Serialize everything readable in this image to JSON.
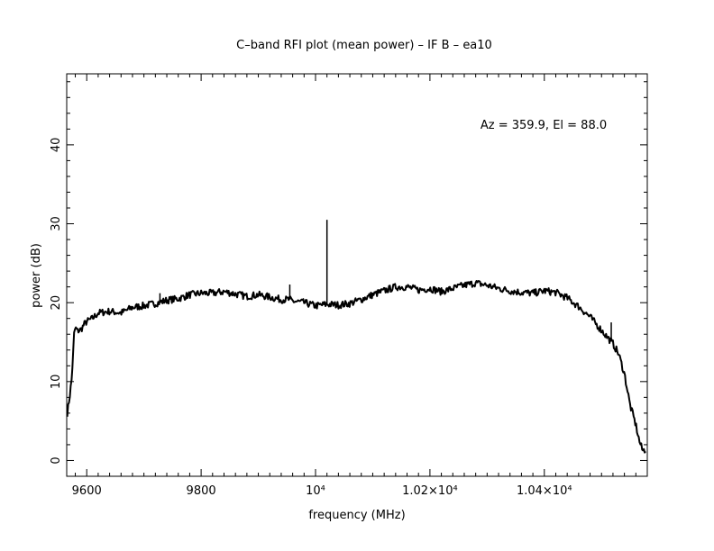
{
  "chart_data": {
    "type": "line",
    "title": "C–band RFI plot (mean power) – IF B – ea10",
    "xlabel": "frequency (MHz)",
    "ylabel": "power (dB)",
    "annotation": "Az = 359.9, El = 88.0",
    "xlim": [
      9565,
      10580
    ],
    "ylim": [
      -2,
      49
    ],
    "grid": false,
    "legend": "none",
    "line_color": "#000000",
    "x_ticks": [
      {
        "value": 9600,
        "label": "9600"
      },
      {
        "value": 9800,
        "label": "9800"
      },
      {
        "value": 10000,
        "label": "10⁴"
      },
      {
        "value": 10200,
        "label": "1.02×10⁴"
      },
      {
        "value": 10400,
        "label": "1.04×10⁴"
      }
    ],
    "y_ticks": [
      {
        "value": 0,
        "label": "0"
      },
      {
        "value": 10,
        "label": "10"
      },
      {
        "value": 20,
        "label": "20"
      },
      {
        "value": 30,
        "label": "30"
      },
      {
        "value": 40,
        "label": "40"
      }
    ],
    "series": [
      {
        "x": [
          9566,
          9570,
          9574,
          9578,
          9580,
          9584,
          9590,
          9596,
          9600,
          9610,
          9620,
          9640,
          9660,
          9680,
          9700,
          9720,
          9730,
          9740,
          9760,
          9780,
          9800,
          9820,
          9840,
          9860,
          9880,
          9900,
          9920,
          9940,
          9955,
          9960,
          9980,
          10000,
          10020,
          10040,
          10050,
          10060,
          10080,
          10100,
          10120,
          10140,
          10160,
          10180,
          10200,
          10220,
          10240,
          10260,
          10280,
          10300,
          10320,
          10340,
          10360,
          10380,
          10400,
          10420,
          10440,
          10460,
          10480,
          10500,
          10520,
          10530,
          10540,
          10550,
          10560,
          10566,
          10572,
          10578
        ],
        "y": [
          6.0,
          8.0,
          10.5,
          16.0,
          16.8,
          16.4,
          16.6,
          17.3,
          17.6,
          18.0,
          18.7,
          18.9,
          18.7,
          19.4,
          19.6,
          19.9,
          20.1,
          20.3,
          20.5,
          21.0,
          21.2,
          21.2,
          21.4,
          21.1,
          20.8,
          21.0,
          20.7,
          20.4,
          20.4,
          20.2,
          20.0,
          19.6,
          19.8,
          19.7,
          19.8,
          19.9,
          20.4,
          21.0,
          21.5,
          22.0,
          22.0,
          21.6,
          21.8,
          21.4,
          21.8,
          22.2,
          22.5,
          22.2,
          21.8,
          21.5,
          21.3,
          21.2,
          21.5,
          21.3,
          20.6,
          19.5,
          18.2,
          16.5,
          14.8,
          13.5,
          11.0,
          7.0,
          4.5,
          2.5,
          1.2,
          1.5
        ],
        "spikes": [
          {
            "x": 9728,
            "y": 21.2
          },
          {
            "x": 9955,
            "y": 22.3
          },
          {
            "x": 10020,
            "y": 30.5
          },
          {
            "x": 10517,
            "y": 17.5
          }
        ]
      }
    ]
  }
}
